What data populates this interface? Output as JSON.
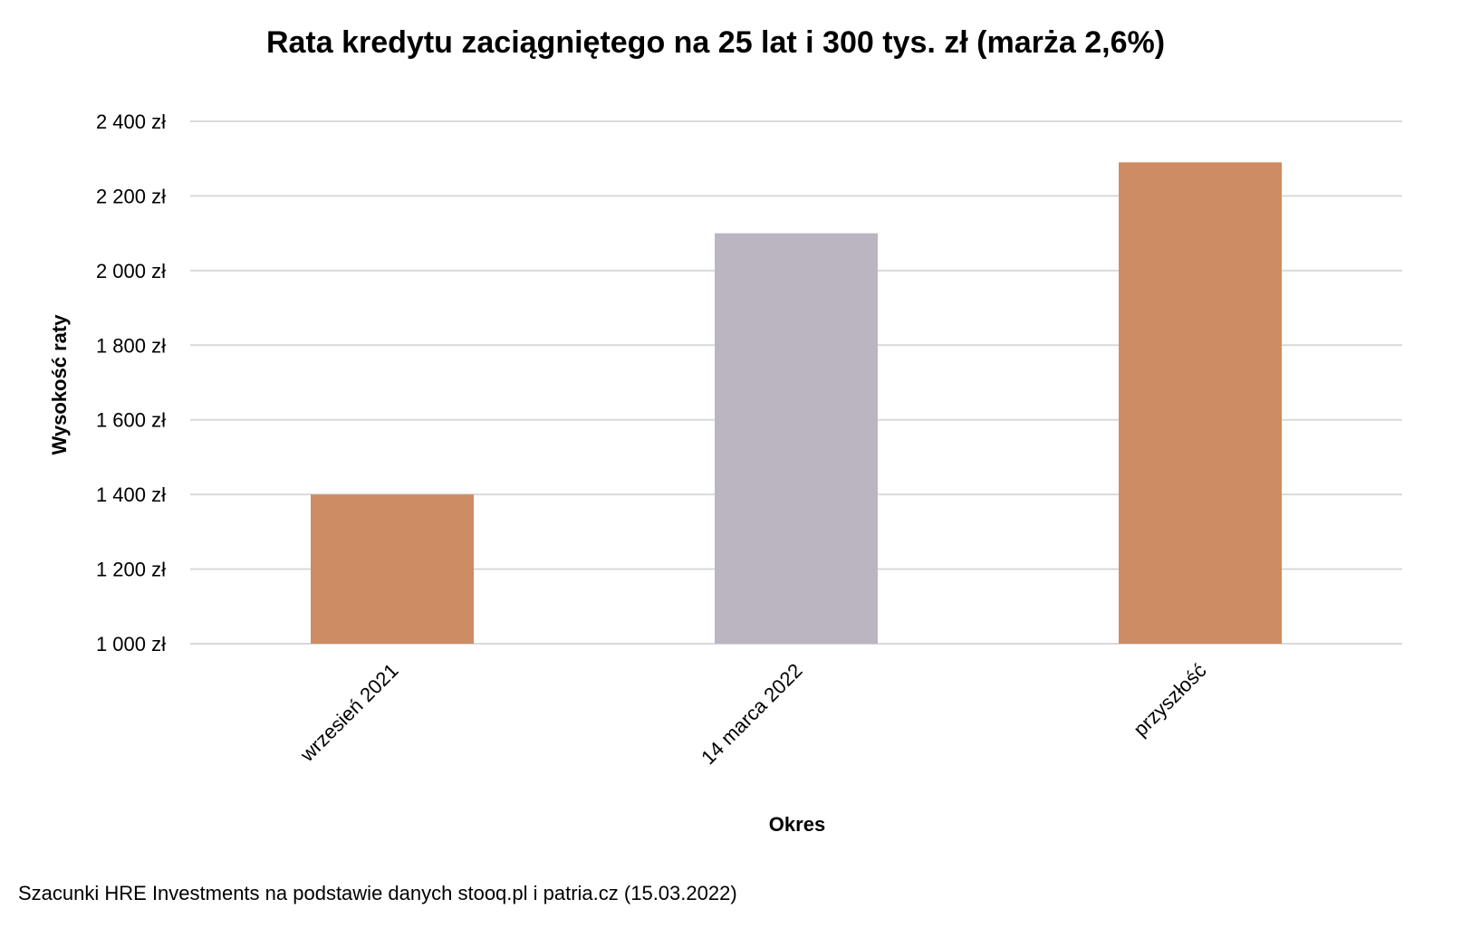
{
  "chart_data": {
    "type": "bar",
    "title": "Rata kredytu zaciągniętego na 25 lat i 300 tys. zł (marża 2,6%)",
    "xlabel": "Okres",
    "ylabel": "Wysokość raty",
    "categories": [
      "wrzesień 2021",
      "14 marca 2022",
      "przyszłość"
    ],
    "values": [
      1400,
      2100,
      2290
    ],
    "bar_colors": [
      "#CD8C63",
      "#BBB5C1",
      "#CD8C63"
    ],
    "ylim": [
      1000,
      2400
    ],
    "yticks": [
      1000,
      1200,
      1400,
      1600,
      1800,
      2000,
      2200,
      2400
    ],
    "ytick_labels": [
      "1 000 zł",
      "1 200 zł",
      "1 400 zł",
      "1 600 zł",
      "1 800 zł",
      "2 000 zł",
      "2 200 zł",
      "2 400 zł"
    ],
    "grid": true,
    "grid_color": "#D9D9D9",
    "legend": "none"
  },
  "source": "Szacunki HRE Investments na podstawie danych stooq.pl i patria.cz (15.03.2022)"
}
